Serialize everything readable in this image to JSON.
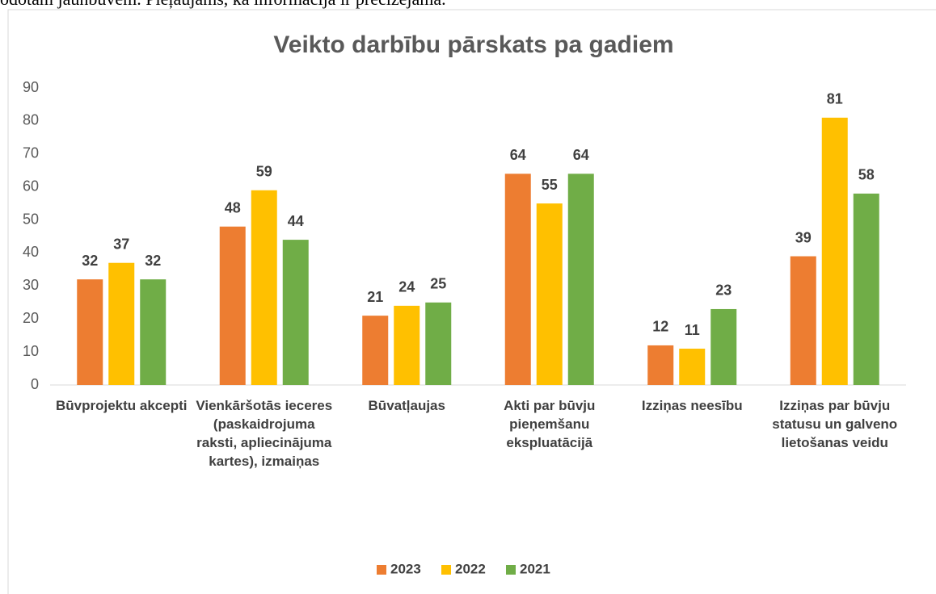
{
  "header": {
    "text": "odotām jaunbūvēm. Pieļaujams, ka informācija ir precizējama."
  },
  "chart_data": {
    "type": "bar",
    "title": "Veikto darbību pārskats pa gadiem",
    "categories": [
      "Būvprojektu akcepti",
      "Vienkāršotās ieceres (paskaidrojuma raksti, apliecinājuma kartes), izmaiņas",
      "Būvatļaujas",
      "Akti par būvju pieņemšanu ekspluatācijā",
      "Izziņas neesību",
      "Izziņas par būvju statusu un galveno lietošanas veidu"
    ],
    "series": [
      {
        "name": "2023",
        "color": "#ED7D31",
        "values": [
          32,
          48,
          21,
          64,
          12,
          39
        ]
      },
      {
        "name": "2022",
        "color": "#FFC000",
        "values": [
          37,
          59,
          24,
          55,
          11,
          81
        ]
      },
      {
        "name": "2021",
        "color": "#70AD47",
        "values": [
          32,
          44,
          25,
          64,
          23,
          58
        ]
      }
    ],
    "ylim": [
      0,
      90
    ],
    "yticks": [
      0,
      10,
      20,
      30,
      40,
      50,
      60,
      70,
      80,
      90
    ],
    "grid": false,
    "legend": "bottom"
  }
}
